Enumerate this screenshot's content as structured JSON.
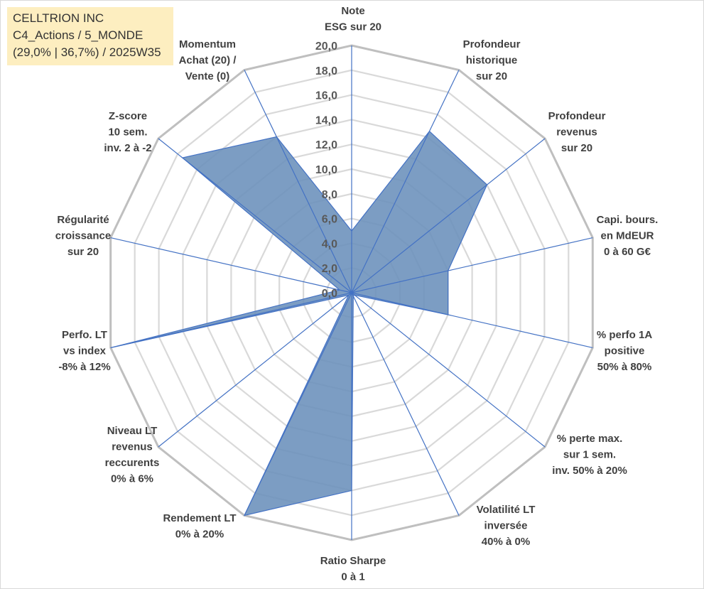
{
  "header": {
    "company": "CELLTRION INC",
    "category": "C4_Actions / 5_MONDE",
    "stats": "(29,0% | 36,7%) / 2025W35"
  },
  "chart_data": {
    "type": "radar",
    "axes": [
      [
        "Note",
        "ESG sur 20"
      ],
      [
        "Profondeur",
        "historique",
        "sur 20"
      ],
      [
        "Profondeur",
        "revenus",
        "sur 20"
      ],
      [
        "Capi. bours.",
        "en MdEUR",
        "0 à 60 G€"
      ],
      [
        "% perfo 1A",
        "positive",
        "50% à 80%"
      ],
      [
        "% perte max.",
        "sur 1 sem.",
        "inv. 50% à 20%"
      ],
      [
        "Volatilité LT",
        "inversée",
        "40% à 0%"
      ],
      [
        "Ratio Sharpe",
        "0 à 1"
      ],
      [
        "Rendement LT",
        "0% à 20%"
      ],
      [
        "Niveau LT",
        "revenus",
        "reccurents",
        "0% à 6%"
      ],
      [
        "Perfo. LT",
        "vs index",
        "-8% à 12%"
      ],
      [
        "Régularité",
        "croissance",
        "sur 20"
      ],
      [
        "Z-score",
        "10 sem.",
        "inv. 2 à -2"
      ],
      [
        "Momentum",
        "Achat (20) /",
        "Vente (0)"
      ]
    ],
    "ticks": [
      "0,0",
      "2,0",
      "4,0",
      "6,0",
      "8,0",
      "10,0",
      "12,0",
      "14,0",
      "16,0",
      "18,0",
      "20,0"
    ],
    "rlim": [
      0,
      20
    ],
    "values": [
      5.0,
      14.5,
      14.0,
      8.0,
      8.0,
      0.3,
      0.3,
      16.0,
      20.0,
      0.3,
      20.0,
      1.0,
      17.5,
      14.0
    ],
    "colors": {
      "fill": "#6a8fbb",
      "stroke": "#4472c4",
      "grid": "#bfbfbf",
      "spoke": "#4472c4"
    }
  }
}
